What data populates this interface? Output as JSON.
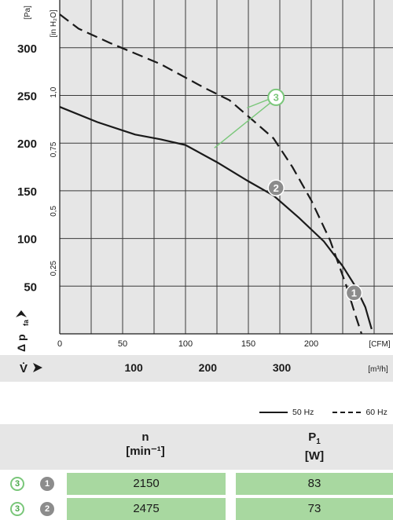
{
  "chart_data": {
    "type": "line",
    "y_unit": "[Pa]",
    "y_unit2": "[in H₂O]",
    "y_ticks": [
      "300",
      "250",
      "200",
      "150",
      "100",
      "50"
    ],
    "y_ticks_inch": [
      "1,0",
      "0,75",
      "0,5",
      "0,25"
    ],
    "y_axis_label": "Δ p",
    "y_axis_label_sub": "fa",
    "x_unit_cfm": "[CFM]",
    "x_ticks_cfm": [
      "0",
      "50",
      "100",
      "150",
      "200"
    ],
    "x_axis_label": "V̇",
    "x_unit_m3h": "[m³/h]",
    "x_ticks_m3h": [
      "100",
      "200",
      "300"
    ],
    "xlim_cfm": [
      0,
      250
    ],
    "ylim_pa": [
      0,
      350
    ],
    "grid": true,
    "series": [
      {
        "name": "50 Hz",
        "style": "solid",
        "x": [
          0,
          30,
          60,
          80,
          100,
          125,
          150,
          170,
          190,
          210,
          225,
          235,
          243,
          248
        ],
        "y": [
          238,
          222,
          209,
          204,
          198,
          180,
          160,
          145,
          122,
          97,
          71,
          50,
          28,
          5
        ]
      },
      {
        "name": "60 Hz",
        "style": "dashed",
        "x": [
          0,
          15,
          40,
          80,
          115,
          135,
          150,
          170,
          185,
          200,
          215,
          228,
          235,
          240
        ],
        "y": [
          335,
          320,
          305,
          283,
          258,
          245,
          228,
          205,
          175,
          140,
          98,
          50,
          20,
          0
        ]
      }
    ],
    "markers": [
      {
        "label": "1",
        "x": 234,
        "y": 43,
        "kind": "grey"
      },
      {
        "label": "2",
        "x": 172,
        "y": 153,
        "kind": "grey"
      },
      {
        "label": "3",
        "x": 172,
        "y": 248,
        "kind": "green"
      }
    ]
  },
  "legend": {
    "solid_label": "50 Hz",
    "dashed_label": "60 Hz"
  },
  "table": {
    "col_n": "n",
    "col_n_unit": "[min⁻¹]",
    "col_p": "P",
    "col_p_sub": "1",
    "col_p_unit": "[W]",
    "rows": [
      {
        "curve": "3",
        "point": "1",
        "n": "2150",
        "p": "83"
      },
      {
        "curve": "3",
        "point": "2",
        "n": "2475",
        "p": "73"
      }
    ]
  },
  "colors": {
    "plot_bg": "#e6e6e6",
    "grid": "#3a3a3a",
    "green": "#7ac77a",
    "cell": "#a8d8a0",
    "marker": "#8c8c8c"
  }
}
